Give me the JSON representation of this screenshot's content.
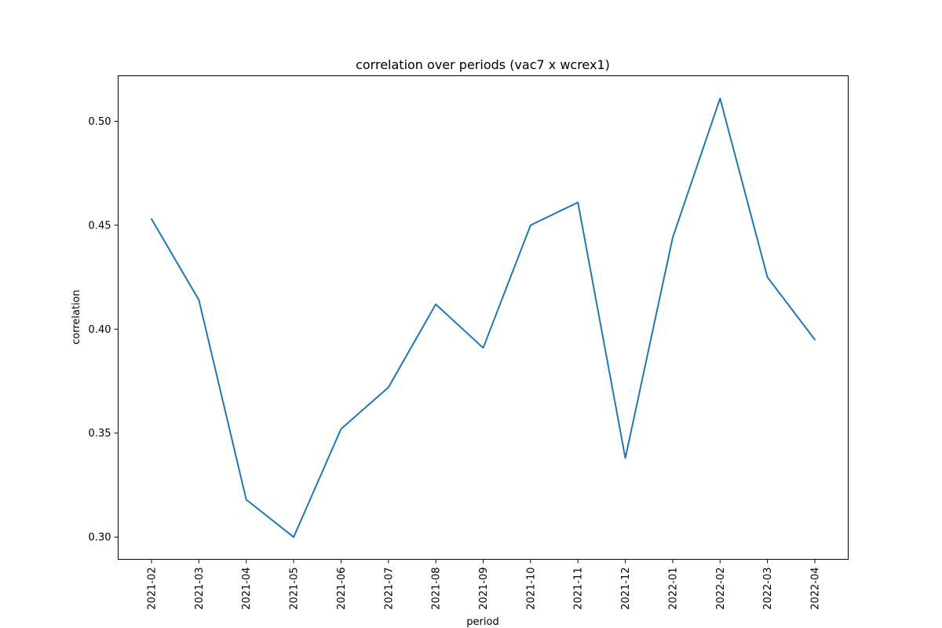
{
  "chart_data": {
    "type": "line",
    "title": "correlation over periods (vac7 x wcrex1)",
    "xlabel": "period",
    "ylabel": "correlation",
    "categories": [
      "2021-02",
      "2021-03",
      "2021-04",
      "2021-05",
      "2021-06",
      "2021-07",
      "2021-08",
      "2021-09",
      "2021-10",
      "2021-11",
      "2021-12",
      "2022-01",
      "2022-02",
      "2022-03",
      "2022-04"
    ],
    "series": [
      {
        "values": [
          0.453,
          0.414,
          0.318,
          0.3,
          0.352,
          0.372,
          0.412,
          0.391,
          0.45,
          0.461,
          0.338,
          0.444,
          0.511,
          0.425,
          0.395
        ],
        "color": "#1f77b4"
      }
    ],
    "ylim": [
      0.2893,
      0.5219
    ],
    "yticks": [
      0.3,
      0.35,
      0.4,
      0.45,
      0.5
    ],
    "ytick_labels": [
      "0.30",
      "0.35",
      "0.40",
      "0.45",
      "0.50"
    ],
    "grid": false,
    "legend": "none"
  }
}
